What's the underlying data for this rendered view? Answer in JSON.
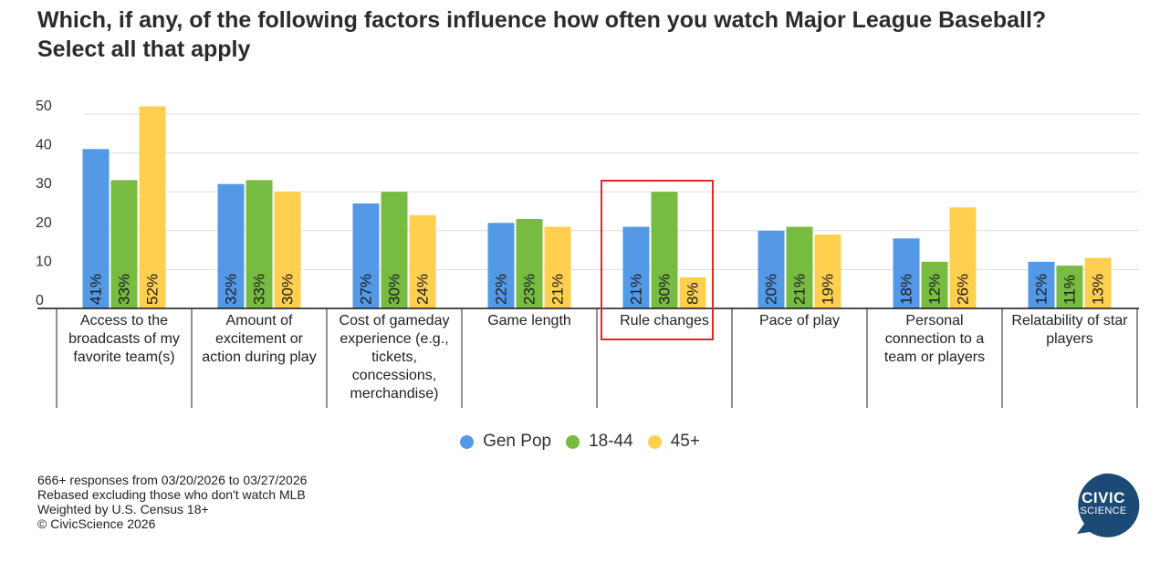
{
  "title_lines": [
    "Which, if any, of the following factors influence how often you watch Major League Baseball?",
    "Select all that apply"
  ],
  "colors": {
    "gen_pop": "#5499e6",
    "age_18_44": "#77bb41",
    "age_45_plus": "#ffcf4f",
    "highlight": "#e02a2a",
    "logo": "#1b4a77"
  },
  "chart_data": {
    "type": "bar",
    "categories": [
      [
        "Access to the",
        "broadcasts of my",
        "favorite team(s)"
      ],
      [
        "Amount of",
        "excitement or",
        "action during play"
      ],
      [
        "Cost of gameday",
        "experience (e.g.,",
        "tickets,",
        "concessions,",
        "merchandise)"
      ],
      [
        "Game length"
      ],
      [
        "Rule changes"
      ],
      [
        "Pace of play"
      ],
      [
        "Personal",
        "connection to a",
        "team or players"
      ],
      [
        "Relatability of star",
        "players"
      ]
    ],
    "series": [
      {
        "name": "Gen Pop",
        "color": "#5499e6",
        "values": [
          41,
          32,
          27,
          22,
          21,
          20,
          18,
          12
        ]
      },
      {
        "name": "18-44",
        "color": "#77bb41",
        "values": [
          33,
          33,
          30,
          23,
          30,
          21,
          12,
          11
        ]
      },
      {
        "name": "45+",
        "color": "#ffcf4f",
        "values": [
          52,
          30,
          24,
          21,
          8,
          19,
          26,
          13
        ]
      }
    ],
    "ylim": [
      0,
      50
    ],
    "yticks": [
      0,
      10,
      20,
      30,
      40,
      50
    ],
    "label_suffix": "%",
    "highlighted_category": 4,
    "grid": true,
    "legend_position": "bottom-center"
  },
  "notes": [
    "666+ responses from 03/20/2026 to 03/27/2026",
    "Rebased excluding those who don't watch MLB",
    "Weighted by U.S. Census 18+",
    "© CivicScience 2026"
  ],
  "logo": {
    "line1": "CIVIC",
    "line2": "SCIENCE"
  }
}
